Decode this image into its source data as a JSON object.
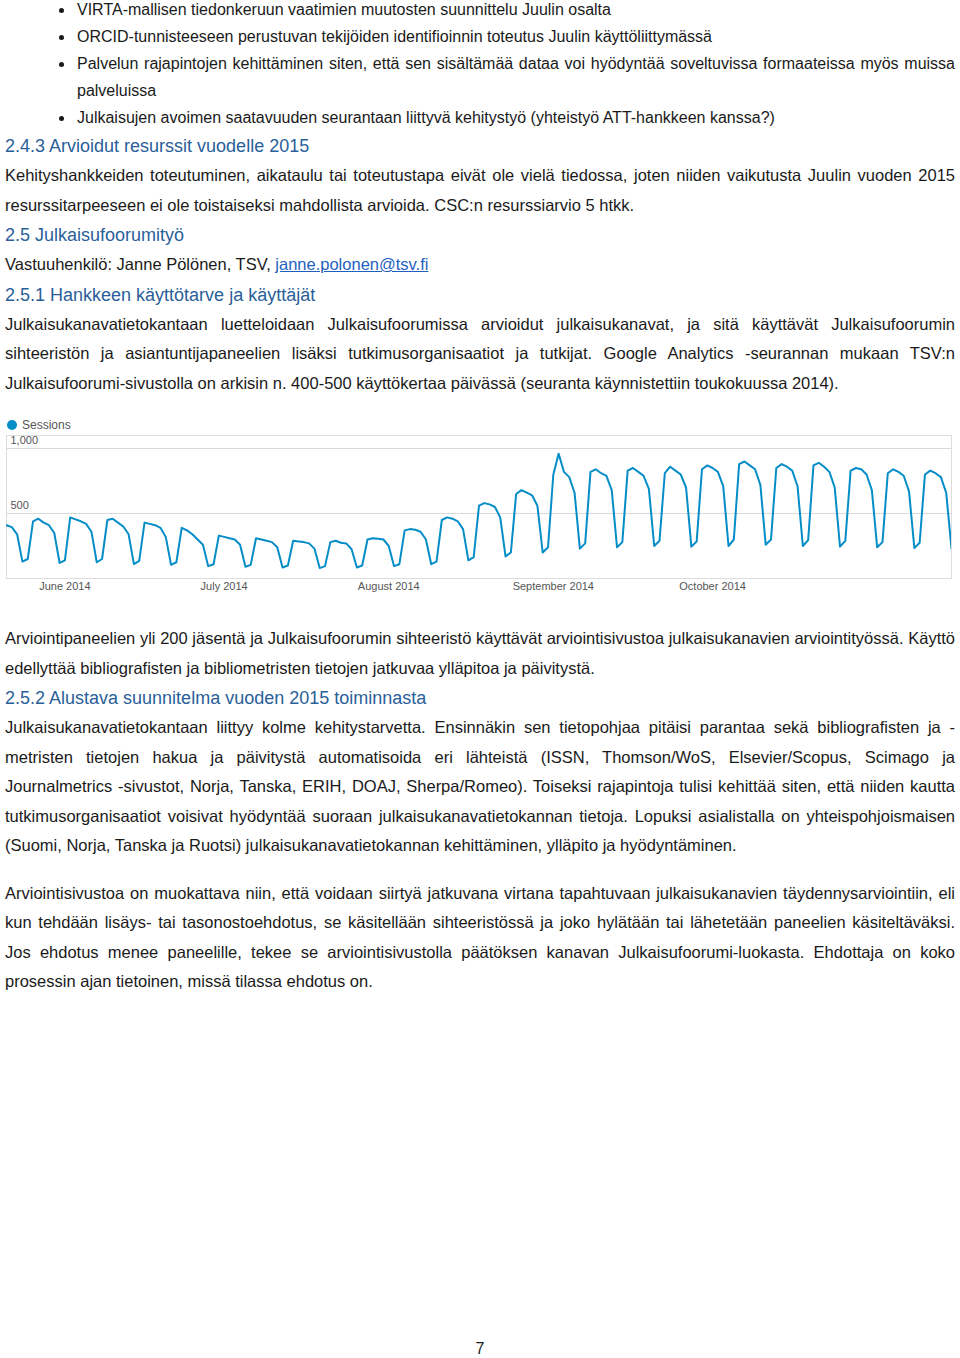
{
  "bullets": [
    "VIRTA-mallisen tiedonkeruun vaatimien muutosten suunnittelu Juulin osalta",
    "ORCID-tunnisteeseen perustuvan tekijöiden identifioinnin toteutus Juulin käyttöliittymässä",
    "Palvelun rajapintojen kehittäminen siten, että sen sisältämää dataa voi hyödyntää soveltuvissa formaateissa myös muissa palveluissa",
    "Julkaisujen avoimen saatavuuden seurantaan liittyvä kehitystyö (yhteistyö ATT-hankkeen kanssa?)"
  ],
  "s243": {
    "heading": "2.4.3 Arvioidut resurssit vuodelle 2015",
    "paragraphs": [
      "Kehityshankkeiden toteutuminen, aikataulu tai toteutustapa eivät ole vielä tiedossa, joten niiden vaikutusta Juulin vuoden 2015 resurssitarpeeseen ei ole toistaiseksi mahdollista arvioida. CSC:n resurssiarvio 5 htkk."
    ]
  },
  "s25": {
    "heading": "2.5 Julkaisufoorumityö",
    "contact": "Vastuuhenkilö: Janne Pölönen, TSV,",
    "email": "janne.polonen@tsv.fi"
  },
  "s251": {
    "heading": "2.5.1 Hankkeen käyttötarve ja käyttäjät",
    "paragraphs": [
      "Julkaisukanavatietokantaan luetteloidaan Julkaisufoorumissa arvioidut julkaisukanavat, ja sitä käyttävät Julkaisufoorumin sihteeristön ja asiantuntijapaneelien lisäksi tutkimusorganisaatiot ja tutkijat. Google Analytics -seurannan mukaan TSV:n Julkaisufoorumi-sivustolla on arkisin n. 400-500 käyttökertaa päivässä (seuranta käynnistettiin toukokuussa 2014)."
    ],
    "after_chart": [
      "Arviointipaneelien yli 200 jäsentä ja Julkaisufoorumin sihteeristö käyttävät arviointisivustoa julkaisukanavien arviointityössä. Käyttö edellyttää bibliografisten ja bibliometristen tietojen jatkuvaa ylläpitoa ja päivitystä."
    ]
  },
  "chart_data": {
    "type": "line",
    "legend": "top-left",
    "grid": true,
    "ylim": [
      0,
      1100
    ],
    "yticks": [
      500,
      {
        "value": 1000,
        "label": "1,000"
      }
    ],
    "categories": [
      null,
      null,
      null,
      null,
      null,
      null,
      null,
      null,
      null,
      null,
      null,
      "June 2014",
      null,
      null,
      null,
      null,
      null,
      null,
      null,
      null,
      null,
      null,
      null,
      null,
      null,
      null,
      null,
      null,
      null,
      null,
      null,
      null,
      null,
      null,
      null,
      null,
      null,
      null,
      null,
      null,
      null,
      "July 2014",
      null,
      null,
      null,
      null,
      null,
      null,
      null,
      null,
      null,
      null,
      null,
      null,
      null,
      null,
      null,
      null,
      null,
      null,
      null,
      null,
      null,
      null,
      null,
      null,
      null,
      null,
      null,
      null,
      null,
      null,
      "August 2014",
      null,
      null,
      null,
      null,
      null,
      null,
      null,
      null,
      null,
      null,
      null,
      null,
      null,
      null,
      null,
      null,
      null,
      null,
      null,
      null,
      null,
      null,
      null,
      null,
      null,
      null,
      null,
      null,
      null,
      null,
      "September 2014",
      null,
      null,
      null,
      null,
      null,
      null,
      null,
      null,
      null,
      null,
      null,
      null,
      null,
      null,
      null,
      null,
      null,
      null,
      null,
      null,
      null,
      null,
      null,
      null,
      null,
      null,
      null,
      null,
      null,
      "October 2014",
      null,
      null,
      null,
      null,
      null,
      null,
      null,
      null,
      null,
      null,
      null,
      null,
      null,
      null,
      null,
      null,
      null,
      null,
      null,
      null,
      null,
      null,
      null,
      null,
      null,
      null,
      null,
      null,
      null,
      null,
      null,
      null,
      null,
      null,
      null,
      null,
      null,
      null,
      null,
      null,
      null,
      null,
      null,
      null,
      null
    ],
    "series": [
      {
        "name": "Sessions",
        "color": "#058dc7",
        "values": [
          410,
          395,
          340,
          130,
          150,
          440,
          460,
          430,
          410,
          350,
          120,
          140,
          470,
          455,
          440,
          420,
          360,
          125,
          150,
          450,
          460,
          430,
          400,
          340,
          110,
          135,
          430,
          420,
          410,
          390,
          320,
          105,
          125,
          390,
          370,
          340,
          300,
          260,
          95,
          110,
          330,
          320,
          310,
          300,
          260,
          90,
          105,
          310,
          300,
          290,
          280,
          240,
          85,
          100,
          290,
          285,
          280,
          270,
          230,
          80,
          95,
          280,
          290,
          275,
          270,
          225,
          85,
          100,
          300,
          310,
          305,
          300,
          250,
          95,
          110,
          370,
          380,
          375,
          360,
          300,
          110,
          130,
          450,
          470,
          460,
          440,
          380,
          140,
          165,
          560,
          580,
          570,
          550,
          470,
          170,
          200,
          650,
          680,
          660,
          640,
          560,
          200,
          240,
          800,
          960,
          820,
          780,
          660,
          230,
          270,
          820,
          840,
          810,
          790,
          680,
          240,
          280,
          830,
          850,
          820,
          790,
          690,
          250,
          290,
          810,
          860,
          830,
          800,
          700,
          245,
          285,
          840,
          870,
          850,
          820,
          710,
          250,
          300,
          880,
          900,
          870,
          840,
          720,
          260,
          300,
          850,
          880,
          860,
          830,
          710,
          250,
          295,
          870,
          890,
          860,
          820,
          700,
          245,
          290,
          830,
          850,
          840,
          800,
          680,
          240,
          280,
          810,
          840,
          820,
          790,
          670,
          235,
          275,
          800,
          830,
          810,
          780,
          660,
          230
        ]
      }
    ]
  },
  "s252": {
    "heading": "2.5.2 Alustava suunnitelma vuoden 2015 toiminnasta",
    "paragraphs": [
      "Julkaisukanavatietokantaan liittyy kolme kehitystarvetta. Ensinnäkin sen tietopohjaa pitäisi parantaa sekä bibliografisten ja -metristen tietojen hakua ja päivitystä automatisoida eri lähteistä (ISSN, Thomson/WoS, Elsevier/Scopus, Scimago ja Journalmetrics -sivustot, Norja, Tanska, ERIH, DOAJ, Sherpa/Romeo). Toiseksi rajapintoja tulisi kehittää siten, että niiden kautta tutkimusorganisaatiot voisivat hyödyntää suoraan julkaisukanavatietokannan tietoja. Lopuksi asialistalla on yhteispohjoismaisen (Suomi, Norja, Tanska ja Ruotsi) julkaisukanavatietokannan kehittäminen, ylläpito ja hyödyntäminen.",
      "Arviointisivustoa on muokattava niin, että voidaan siirtyä jatkuvana virtana tapahtuvaan julkaisukanavien täydennysarviointiin, eli kun tehdään lisäys- tai tasonostoehdotus, se käsitellään sihteeristössä ja joko hylätään tai lähetetään paneelien käsiteltäväksi. Jos ehdotus menee paneelille, tekee se arviointisivustolla päätöksen kanavan Julkaisufoorumi-luokasta. Ehdottaja on koko prosessin ajan tietoinen, missä tilassa ehdotus on."
    ]
  },
  "page_number": "7"
}
